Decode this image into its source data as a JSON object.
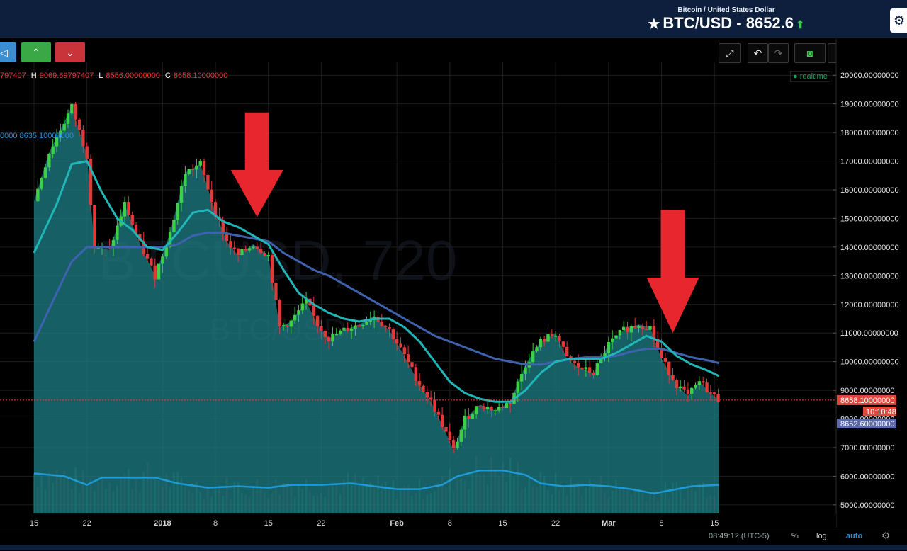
{
  "header": {
    "subtitle": "Bitcoin / United States Dollar",
    "pair": "BTC/USD",
    "separator": " - ",
    "price": "8652.6",
    "star_icon": "star-icon",
    "trend_icon": "arrow-up-icon"
  },
  "toolbar": {
    "left_buttons": [
      {
        "name": "megaphone-button",
        "icon": "megaphone-icon",
        "glyph": "◁",
        "color": "#3b8fd0"
      },
      {
        "name": "buy-up-button",
        "icon": "chevron-up-circle-icon",
        "glyph": "⌃",
        "color": "#3aa844"
      },
      {
        "name": "sell-down-button",
        "icon": "chevron-down-circle-icon",
        "glyph": "⌄",
        "color": "#c8343a"
      }
    ],
    "right_buttons": [
      {
        "name": "fullscreen-button",
        "icon": "fullscreen-icon",
        "glyph": "⤢"
      },
      {
        "name": "undo-button",
        "icon": "undo-icon",
        "glyph": "↶"
      },
      {
        "name": "redo-button",
        "icon": "redo-icon",
        "glyph": "↷"
      },
      {
        "name": "snapshot-button",
        "icon": "camera-icon",
        "glyph": "📷"
      },
      {
        "name": "cloud-download-button",
        "icon": "cloud-download-icon",
        "glyph": "☁↓"
      },
      {
        "name": "cloud-upload-button",
        "icon": "cloud-upload-icon",
        "glyph": "☁↑"
      }
    ]
  },
  "ohlc": {
    "o_value": "797407",
    "h_label": "H",
    "h_value": "9069.69797407",
    "l_label": "L",
    "l_value": "8556.00000000",
    "c_label": "C",
    "c_value": "8658.10000000"
  },
  "ma_readout": "0000  8635.10000000",
  "realtime": "realtime",
  "watermark": {
    "line1": "BTCUSD, 720",
    "line2": "BTC/USD"
  },
  "price_tags": {
    "last": "8658.10000000",
    "countdown": "10:10:48",
    "bid": "8652.60000000",
    "last_color": "#e0473c",
    "bid_color": "#5a6aa8"
  },
  "bottom": {
    "time": "08:49:12 (UTC-5)",
    "percent": "%",
    "log": "log",
    "auto": "auto",
    "settings_icon": "gear-icon"
  },
  "colors": {
    "up": "#3ecf4a",
    "down": "#e03a3a",
    "area_fill": "#1d7f86",
    "ma_fast": "#1fb6b8",
    "ma_slow": "#3f62b0",
    "volume_ma": "#1e9ad6",
    "arrow": "#e8262d"
  },
  "chart_data": {
    "type": "candlestick",
    "y_axis": {
      "ticks": [
        5000,
        6000,
        7000,
        8000,
        9000,
        10000,
        11000,
        12000,
        13000,
        14000,
        15000,
        16000,
        17000,
        18000,
        19000,
        20000
      ],
      "tick_labels": [
        "5000.00000000",
        "6000.00000000",
        "7000.00000000",
        "8000.00000000",
        "9000.00000000",
        "10000.00000000",
        "11000.00000000",
        "12000.00000000",
        "13000.00000000",
        "14000.00000000",
        "15000.00000000",
        "16000.00000000",
        "17000.00000000",
        "18000.00000000",
        "19000.00000000",
        "20000.00000000"
      ],
      "range": [
        4700,
        20450
      ]
    },
    "x_axis": {
      "range_days": [
        -17.0,
        93.6
      ],
      "ticks": [
        {
          "label": "15",
          "day": -17
        },
        {
          "label": "22",
          "day": -10
        },
        {
          "label": "2018",
          "day": 0
        },
        {
          "label": "8",
          "day": 7
        },
        {
          "label": "15",
          "day": 14
        },
        {
          "label": "22",
          "day": 21
        },
        {
          "label": "Feb",
          "day": 31
        },
        {
          "label": "8",
          "day": 38
        },
        {
          "label": "15",
          "day": 45
        },
        {
          "label": "22",
          "day": 52
        },
        {
          "label": "Mar",
          "day": 59
        },
        {
          "label": "8",
          "day": 66
        },
        {
          "label": "15",
          "day": 73
        }
      ]
    },
    "close_path": [
      [
        -17,
        15600
      ],
      [
        -15,
        17300
      ],
      [
        -12,
        18900
      ],
      [
        -10,
        17200
      ],
      [
        -9,
        14000
      ],
      [
        -7,
        13900
      ],
      [
        -5,
        15500
      ],
      [
        -3,
        14100
      ],
      [
        -1,
        13000
      ],
      [
        1,
        14500
      ],
      [
        3,
        16600
      ],
      [
        5,
        16900
      ],
      [
        7,
        15200
      ],
      [
        8.5,
        14200
      ],
      [
        10,
        13700
      ],
      [
        12,
        14100
      ],
      [
        14,
        13700
      ],
      [
        15.5,
        11200
      ],
      [
        17,
        11400
      ],
      [
        19,
        12100
      ],
      [
        20.5,
        11300
      ],
      [
        22,
        10800
      ],
      [
        24,
        11100
      ],
      [
        26,
        11300
      ],
      [
        28,
        11600
      ],
      [
        30,
        11100
      ],
      [
        32,
        10200
      ],
      [
        34,
        9200
      ],
      [
        35.5,
        8600
      ],
      [
        37,
        7800
      ],
      [
        38.5,
        6900
      ],
      [
        40,
        8000
      ],
      [
        42,
        8500
      ],
      [
        44,
        8300
      ],
      [
        46,
        8600
      ],
      [
        48,
        9900
      ],
      [
        50,
        10700
      ],
      [
        52,
        11000
      ],
      [
        53.5,
        10100
      ],
      [
        55,
        9800
      ],
      [
        57,
        9600
      ],
      [
        59,
        10600
      ],
      [
        61,
        11100
      ],
      [
        63,
        11300
      ],
      [
        64.5,
        11200
      ],
      [
        66,
        10100
      ],
      [
        68,
        9200
      ],
      [
        69.5,
        8800
      ],
      [
        71,
        9300
      ],
      [
        72.5,
        8900
      ],
      [
        73.6,
        8658
      ]
    ],
    "ma_fast_path": [
      [
        -17,
        13800
      ],
      [
        -14,
        15500
      ],
      [
        -12,
        16900
      ],
      [
        -10,
        17000
      ],
      [
        -8,
        15900
      ],
      [
        -6,
        15000
      ],
      [
        -4,
        14600
      ],
      [
        -2,
        14000
      ],
      [
        0,
        13900
      ],
      [
        2,
        14500
      ],
      [
        4,
        15200
      ],
      [
        6,
        15300
      ],
      [
        8,
        14900
      ],
      [
        10,
        14700
      ],
      [
        12,
        14400
      ],
      [
        14,
        14100
      ],
      [
        16,
        13200
      ],
      [
        18,
        12400
      ],
      [
        20,
        12000
      ],
      [
        22,
        11700
      ],
      [
        24,
        11500
      ],
      [
        26,
        11400
      ],
      [
        28,
        11500
      ],
      [
        30,
        11500
      ],
      [
        32,
        11200
      ],
      [
        34,
        10700
      ],
      [
        36,
        10000
      ],
      [
        38,
        9300
      ],
      [
        40,
        8900
      ],
      [
        42,
        8700
      ],
      [
        44,
        8600
      ],
      [
        46,
        8600
      ],
      [
        48,
        9000
      ],
      [
        50,
        9600
      ],
      [
        52,
        10000
      ],
      [
        54,
        10100
      ],
      [
        56,
        10100
      ],
      [
        58,
        10100
      ],
      [
        60,
        10300
      ],
      [
        62,
        10600
      ],
      [
        64,
        10900
      ],
      [
        66,
        10700
      ],
      [
        68,
        10200
      ],
      [
        70,
        9900
      ],
      [
        72,
        9700
      ],
      [
        73.6,
        9500
      ]
    ],
    "ma_slow_path": [
      [
        -17,
        10700
      ],
      [
        -14,
        12400
      ],
      [
        -12,
        13500
      ],
      [
        -10,
        14000
      ],
      [
        -8,
        14000
      ],
      [
        -6,
        14000
      ],
      [
        -4,
        14000
      ],
      [
        -2,
        14000
      ],
      [
        0,
        14000
      ],
      [
        2,
        14100
      ],
      [
        4,
        14400
      ],
      [
        6,
        14500
      ],
      [
        8,
        14500
      ],
      [
        10,
        14400
      ],
      [
        12,
        14300
      ],
      [
        14,
        14200
      ],
      [
        16,
        13800
      ],
      [
        18,
        13500
      ],
      [
        20,
        13200
      ],
      [
        22,
        13000
      ],
      [
        24,
        12700
      ],
      [
        26,
        12400
      ],
      [
        28,
        12100
      ],
      [
        30,
        11800
      ],
      [
        32,
        11500
      ],
      [
        34,
        11200
      ],
      [
        36,
        10900
      ],
      [
        38,
        10700
      ],
      [
        40,
        10500
      ],
      [
        42,
        10300
      ],
      [
        44,
        10100
      ],
      [
        46,
        10000
      ],
      [
        48,
        9900
      ],
      [
        50,
        9900
      ],
      [
        52,
        10000
      ],
      [
        54,
        10100
      ],
      [
        56,
        10150
      ],
      [
        58,
        10150
      ],
      [
        60,
        10200
      ],
      [
        62,
        10350
      ],
      [
        64,
        10450
      ],
      [
        66,
        10450
      ],
      [
        68,
        10300
      ],
      [
        70,
        10150
      ],
      [
        72,
        10050
      ],
      [
        73.6,
        9950
      ]
    ],
    "volume_ma_path": [
      [
        -17,
        6100
      ],
      [
        -13,
        6000
      ],
      [
        -10,
        5700
      ],
      [
        -8,
        5950
      ],
      [
        -5,
        5950
      ],
      [
        -1,
        5950
      ],
      [
        2,
        5750
      ],
      [
        6,
        5600
      ],
      [
        10,
        5650
      ],
      [
        14,
        5600
      ],
      [
        17,
        5700
      ],
      [
        21,
        5700
      ],
      [
        25,
        5750
      ],
      [
        28,
        5650
      ],
      [
        31,
        5550
      ],
      [
        34,
        5550
      ],
      [
        37,
        5700
      ],
      [
        39,
        6000
      ],
      [
        42,
        6200
      ],
      [
        45,
        6200
      ],
      [
        48,
        6050
      ],
      [
        50,
        5750
      ],
      [
        53,
        5650
      ],
      [
        56,
        5700
      ],
      [
        59,
        5650
      ],
      [
        62,
        5550
      ],
      [
        65,
        5400
      ],
      [
        67,
        5500
      ],
      [
        70,
        5650
      ],
      [
        73.6,
        5700
      ]
    ],
    "last_price": 8658.1,
    "bid_price": 8652.6,
    "annotations": [
      {
        "type": "arrow-down",
        "day": 12.5,
        "top_value": 18700,
        "tip_value": 15050,
        "color": "#e8262d"
      },
      {
        "type": "arrow-down",
        "day": 67.5,
        "top_value": 15300,
        "tip_value": 11000,
        "color": "#e8262d"
      }
    ]
  }
}
